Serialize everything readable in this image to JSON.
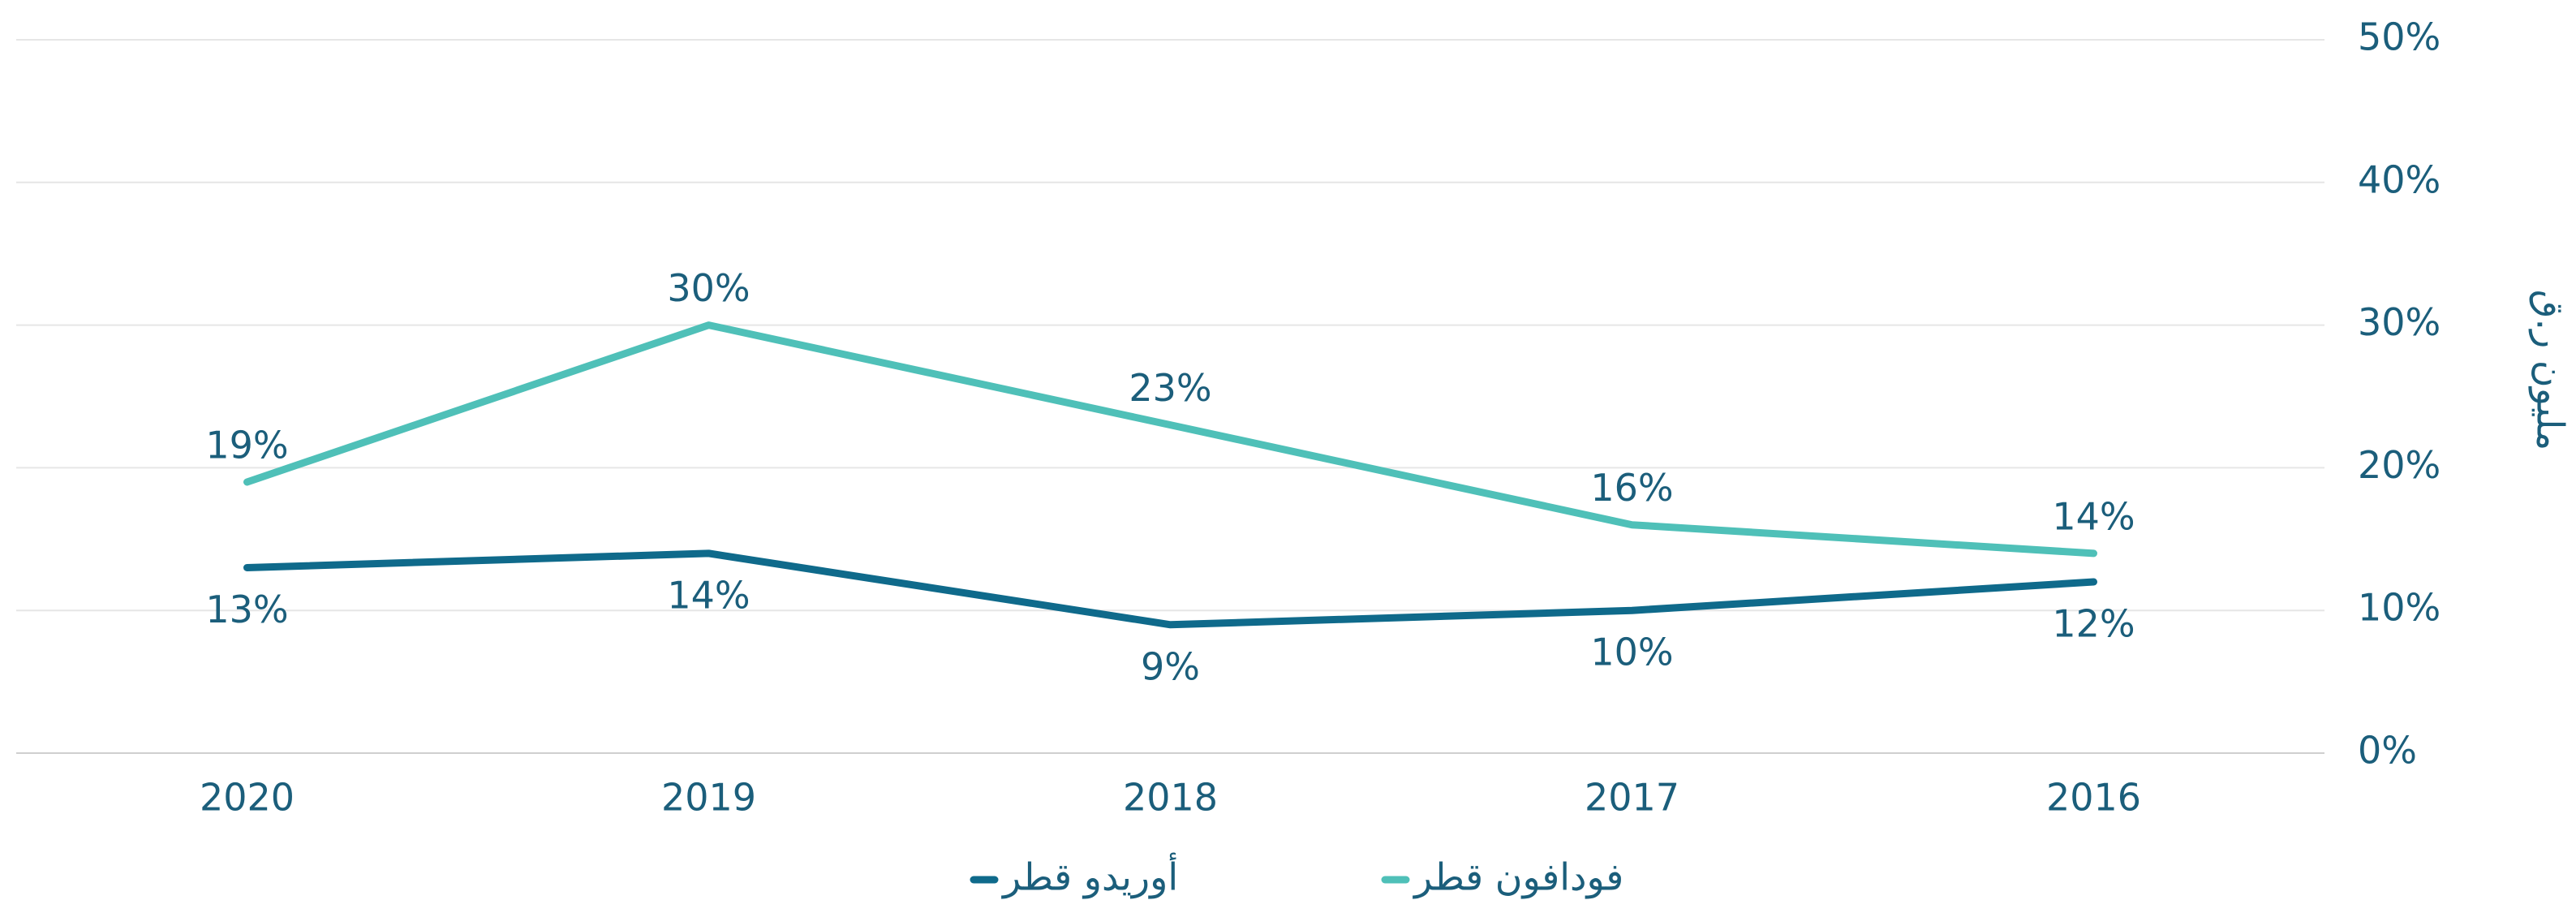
{
  "chart_data": {
    "type": "line",
    "y_label": "مليون ر.ق",
    "categories": [
      "2020",
      "2019",
      "2018",
      "2017",
      "2016"
    ],
    "series": [
      {
        "name": "فودافون قطر",
        "color": "#4fc0b8",
        "values": [
          19,
          30,
          23,
          16,
          14
        ],
        "value_labels": [
          "19%",
          "30%",
          "23%",
          "16%",
          "14%"
        ]
      },
      {
        "name": "أوريدو قطر",
        "color": "#0f6a8b",
        "values": [
          13,
          14,
          9,
          10,
          12
        ],
        "value_labels": [
          "13%",
          "14%",
          "9%",
          "10%",
          "12%"
        ]
      }
    ],
    "ylim": [
      0,
      50
    ],
    "yticks": [
      {
        "value": 0,
        "label": "0%"
      },
      {
        "value": 10,
        "label": "10%"
      },
      {
        "value": 20,
        "label": "20%"
      },
      {
        "value": 30,
        "label": "30%"
      },
      {
        "value": 40,
        "label": "40%"
      },
      {
        "value": 50,
        "label": "50%"
      }
    ],
    "grid": true
  }
}
